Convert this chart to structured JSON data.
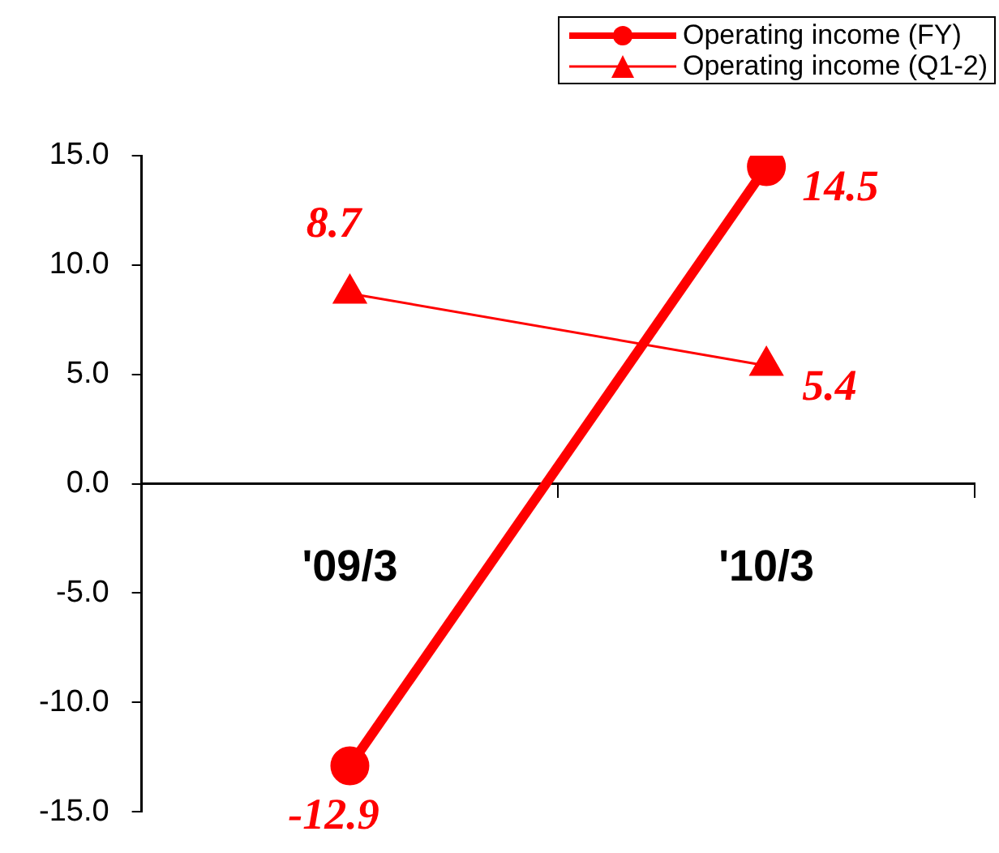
{
  "chart_data": {
    "type": "line",
    "categories": [
      "'09/3",
      "'10/3"
    ],
    "series": [
      {
        "name": "Operating income (FY)",
        "color": "#ff0000",
        "values": [
          -12.9,
          14.5
        ],
        "marker": "circle",
        "value_labels": [
          "-12.9",
          "14.5"
        ]
      },
      {
        "name": "Operating income (Q1-2)",
        "color": "#ff0000",
        "values": [
          8.7,
          5.4
        ],
        "marker": "triangle",
        "value_labels": [
          "8.7",
          "5.4"
        ]
      }
    ],
    "ylim": [
      -15,
      15
    ],
    "yticks": [
      {
        "value": -15,
        "label": "-15.0"
      },
      {
        "value": -10,
        "label": "-10.0"
      },
      {
        "value": -5,
        "label": "-5.0"
      },
      {
        "value": 0,
        "label": "0.0"
      },
      {
        "value": 5,
        "label": "5.0"
      },
      {
        "value": 10,
        "label": "10.0"
      },
      {
        "value": 15,
        "label": "15.0"
      }
    ],
    "grid": false,
    "legend": "top right"
  }
}
